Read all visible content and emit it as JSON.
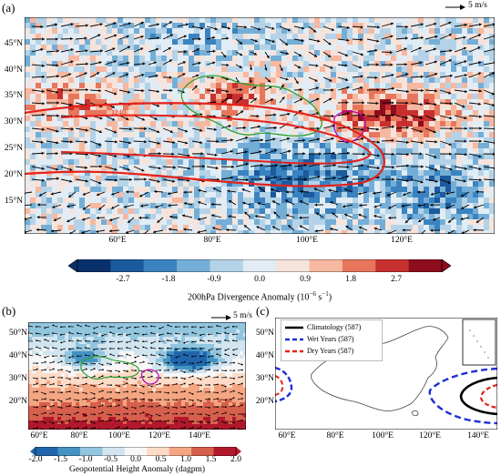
{
  "panel_a": {
    "label": "(a)",
    "ref_vector_label": "5 m/s",
    "lat_labels": [
      "45°N",
      "40°N",
      "35°N",
      "30°N",
      "25°N",
      "20°N",
      "15°N"
    ],
    "lon_labels": [
      "60°E",
      "80°E",
      "100°E",
      "120°E"
    ],
    "colorbar": {
      "ticks": [
        "-2.7",
        "-1.8",
        "-0.9",
        "0.0",
        "0.9",
        "1.8",
        "2.7"
      ],
      "title": "200hPa Divergence Anomaly (10",
      "title_exp": "−6",
      "title_unit": " s",
      "title_exp2": "−1",
      "title_close": ")"
    },
    "contour_label": "1240"
  },
  "panel_b": {
    "label": "(b)",
    "ref_vector_label": "5 m/s",
    "lat_labels": [
      "50°N",
      "40°N",
      "30°N",
      "20°N"
    ],
    "lon_labels": [
      "60°E",
      "80°E",
      "100°E",
      "120°E",
      "140°E"
    ],
    "colorbar": {
      "ticks": [
        "-2.0",
        "-1.5",
        "-1.0",
        "-0.5",
        "0.0",
        "0.5",
        "1.0",
        "1.5",
        "2.0"
      ],
      "title": "Geopotential Height Anomaly (dagpm)"
    }
  },
  "panel_c": {
    "label": "(c)",
    "lat_labels": [
      "50°N",
      "40°N",
      "30°N",
      "20°N"
    ],
    "lon_labels": [
      "60°E",
      "80°E",
      "100°E",
      "120°E",
      "140°E"
    ],
    "legend": [
      {
        "label": "Climatology (587)",
        "color": "#000000"
      },
      {
        "label": "Wet Years (587)",
        "color": "#1f2fd6"
      },
      {
        "label": "Dry Years (587)",
        "color": "#e3221c"
      }
    ]
  },
  "colors": {
    "divergence_scale": [
      "#08306b",
      "#1c5a9e",
      "#3a83c0",
      "#74aed6",
      "#b4d3e8",
      "#e2ecf4",
      "#f6e4dc",
      "#f6b8a0",
      "#e7765c",
      "#c8302f",
      "#8e0d1c"
    ],
    "height_scale": [
      "#2166ac",
      "#4393c3",
      "#92c5de",
      "#d1e5f0",
      "#f7f7f7",
      "#fddbc7",
      "#f4a582",
      "#d6604d",
      "#b2182b"
    ],
    "tibet_outline": "#2ca02c",
    "basin_outline": "#b100b1",
    "contour_red": "#e3221c"
  }
}
